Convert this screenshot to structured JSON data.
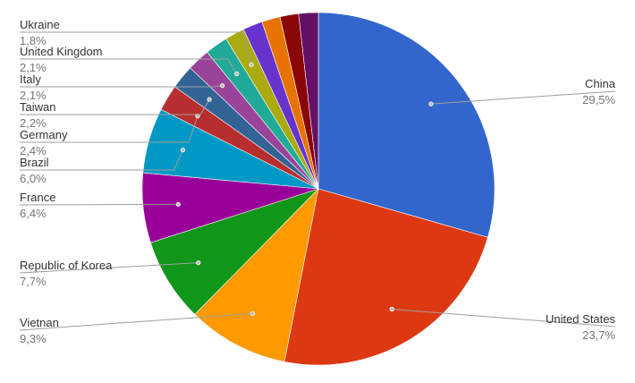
{
  "chart_data": {
    "type": "pie",
    "title": "",
    "start_angle_deg": 0,
    "direction": "clockwise",
    "slices": [
      {
        "label": "China",
        "value": 29.5,
        "display": "29,5%",
        "color": "#3366cc",
        "legend_side": "right"
      },
      {
        "label": "United States",
        "value": 23.7,
        "display": "23,7%",
        "color": "#dc3912",
        "legend_side": "right"
      },
      {
        "label": "Vietnan",
        "value": 9.3,
        "display": "9,3%",
        "color": "#ff9900",
        "legend_side": "left"
      },
      {
        "label": "Republic of Korea",
        "value": 7.7,
        "display": "7,7%",
        "color": "#109618",
        "legend_side": "left"
      },
      {
        "label": "France",
        "value": 6.4,
        "display": "6,4%",
        "color": "#990099",
        "legend_side": "left"
      },
      {
        "label": "Brazil",
        "value": 6.0,
        "display": "6,0%",
        "color": "#0099c6",
        "legend_side": "left"
      },
      {
        "label": "Germany",
        "value": 2.4,
        "display": "2,4%",
        "color": "#b82e2e",
        "legend_side": "left"
      },
      {
        "label": "Taiwan",
        "value": 2.2,
        "display": "2,2%",
        "color": "#316395",
        "legend_side": "left"
      },
      {
        "label": "Italy",
        "value": 2.1,
        "display": "2,1%",
        "color": "#994499",
        "legend_side": "left"
      },
      {
        "label": "United Kingdom",
        "value": 2.1,
        "display": "2,1%",
        "color": "#22aa99",
        "legend_side": "left"
      },
      {
        "label": "Ukraine",
        "value": 1.8,
        "display": "1,8%",
        "color": "#aaaa11",
        "legend_side": "left"
      },
      {
        "label": "",
        "value": 1.8,
        "display": "",
        "color": "#6633cc",
        "legend_side": "none"
      },
      {
        "label": "",
        "value": 1.7,
        "display": "",
        "color": "#e67300",
        "legend_side": "none"
      },
      {
        "label": "",
        "value": 1.7,
        "display": "",
        "color": "#8b0707",
        "legend_side": "none"
      },
      {
        "label": "",
        "value": 1.8,
        "display": "",
        "color": "#651067",
        "legend_side": "none"
      }
    ]
  }
}
